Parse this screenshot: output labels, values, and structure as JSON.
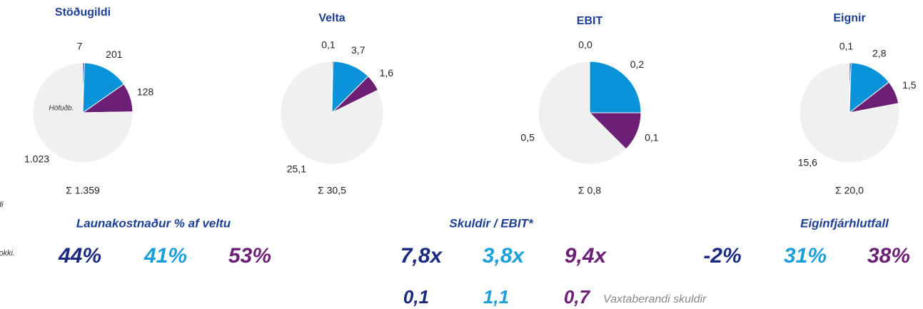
{
  "chart_data": [
    {
      "type": "pie",
      "title": "Stöðugildi",
      "categories": [
        null,
        null,
        null,
        "Höfuðb."
      ],
      "values": [
        7,
        201,
        128,
        1023
      ],
      "value_labels": [
        "7",
        "201",
        "128",
        "1.023"
      ],
      "colors": [
        "#1a2a80",
        "#0b93d9",
        "#6c1f74",
        "#f0f0f0"
      ],
      "total_label": "Σ 1.359"
    },
    {
      "type": "pie",
      "title": "Velta",
      "categories": [
        null,
        null,
        null,
        null
      ],
      "values": [
        0.1,
        3.7,
        1.6,
        25.1
      ],
      "value_labels": [
        "0,1",
        "3,7",
        "1,6",
        "25,1"
      ],
      "colors": [
        "#1a2a80",
        "#0b93d9",
        "#6c1f74",
        "#f0f0f0"
      ],
      "total_label": "Σ 30,5"
    },
    {
      "type": "pie",
      "title": "EBIT",
      "categories": [
        null,
        null,
        null,
        null
      ],
      "values": [
        0.0,
        0.2,
        0.1,
        0.5
      ],
      "value_labels": [
        "0,0",
        "0,2",
        "0,1",
        "0,5"
      ],
      "colors": [
        "#1a2a80",
        "#0b93d9",
        "#6c1f74",
        "#f0f0f0"
      ],
      "total_label": "Σ 0,8"
    },
    {
      "type": "pie",
      "title": "Eignir",
      "categories": [
        null,
        null,
        null,
        null
      ],
      "values": [
        0.1,
        2.8,
        1.5,
        15.6
      ],
      "value_labels": [
        "0,1",
        "2,8",
        "1,5",
        "15,6"
      ],
      "colors": [
        "#1a2a80",
        "#0b93d9",
        "#6c1f74",
        "#f0f0f0"
      ],
      "total_label": "Σ 20,0"
    }
  ],
  "left_notes": [
    "di",
    "lokki."
  ],
  "kpis": [
    {
      "title": "Launakostnaður % af veltu",
      "values": [
        "44%",
        "41%",
        "53%"
      ],
      "colors": [
        "#1a2a80",
        "#1ba0dc",
        "#6c1f74"
      ]
    },
    {
      "title": "Skuldir / EBIT*",
      "values": [
        "7,8x",
        "3,8x",
        "9,4x"
      ],
      "colors": [
        "#1a2a80",
        "#1ba0dc",
        "#6c1f74"
      ],
      "second_row": {
        "values": [
          "0,1",
          "1,1",
          "0,7"
        ],
        "note": "Vaxtaberandi skuldir"
      }
    },
    {
      "title": "Eiginfjárhlutfall",
      "values": [
        "-2%",
        "31%",
        "38%"
      ],
      "colors": [
        "#1a2a80",
        "#1ba0dc",
        "#6c1f74"
      ]
    }
  ]
}
